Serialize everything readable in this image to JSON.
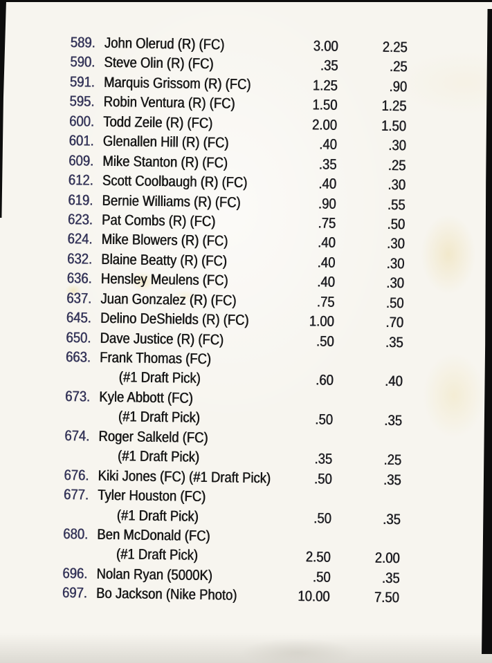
{
  "page": {
    "colors": {
      "paper": "#f7f5ef",
      "edge_black": "#0d0d0d",
      "card_number_ink": "#34345a",
      "text_ink": "#161616",
      "price_ink": "#1d1d22",
      "stain_yellow": "#e9d492"
    }
  },
  "price_list": {
    "rows": [
      {
        "num": "589.",
        "text": "John Olerud (R) (FC)",
        "high": "3.00",
        "low": "2.25",
        "indent": false
      },
      {
        "num": "590.",
        "text": "Steve Olin (R) (FC)",
        "high": ".35",
        "low": ".25",
        "indent": false
      },
      {
        "num": "591.",
        "text": "Marquis Grissom (R) (FC)",
        "high": "1.25",
        "low": ".90",
        "indent": false
      },
      {
        "num": "595.",
        "text": "Robin Ventura (R) (FC)",
        "high": "1.50",
        "low": "1.25",
        "indent": false
      },
      {
        "num": "600.",
        "text": "Todd Zeile (R) (FC)",
        "high": "2.00",
        "low": "1.50",
        "indent": false
      },
      {
        "num": "601.",
        "text": "Glenallen Hill (R) (FC)",
        "high": ".40",
        "low": ".30",
        "indent": false
      },
      {
        "num": "609.",
        "text": "Mike Stanton (R) (FC)",
        "high": ".35",
        "low": ".25",
        "indent": false
      },
      {
        "num": "612.",
        "text": "Scott Coolbaugh (R) (FC)",
        "high": ".40",
        "low": ".30",
        "indent": false
      },
      {
        "num": "619.",
        "text": "Bernie Williams (R) (FC)",
        "high": ".90",
        "low": ".55",
        "indent": false
      },
      {
        "num": "623.",
        "text": "Pat Combs (R) (FC)",
        "high": ".75",
        "low": ".50",
        "indent": false
      },
      {
        "num": "624.",
        "text": "Mike Blowers (R) (FC)",
        "high": ".40",
        "low": ".30",
        "indent": false
      },
      {
        "num": "632.",
        "text": "Blaine Beatty (R) (FC)",
        "high": ".40",
        "low": ".30",
        "indent": false
      },
      {
        "num": "636.",
        "text": "Hensley Meulens (FC)",
        "high": ".40",
        "low": ".30",
        "indent": false
      },
      {
        "num": "637.",
        "text": "Juan Gonzalez (R) (FC)",
        "high": ".75",
        "low": ".50",
        "indent": false
      },
      {
        "num": "645.",
        "text": "Delino DeShields (R) (FC)",
        "high": "1.00",
        "low": ".70",
        "indent": false
      },
      {
        "num": "650.",
        "text": "Dave Justice (R) (FC)",
        "high": ".50",
        "low": ".35",
        "indent": false
      },
      {
        "num": "663.",
        "text": "Frank Thomas (FC)",
        "high": "",
        "low": "",
        "indent": false
      },
      {
        "num": "",
        "text": "(#1 Draft Pick)",
        "high": ".60",
        "low": ".40",
        "indent": true
      },
      {
        "num": "673.",
        "text": "Kyle Abbott (FC)",
        "high": "",
        "low": "",
        "indent": false
      },
      {
        "num": "",
        "text": "(#1 Draft Pick)",
        "high": ".50",
        "low": ".35",
        "indent": true
      },
      {
        "num": "674.",
        "text": "Roger Salkeld (FC)",
        "high": "",
        "low": "",
        "indent": false
      },
      {
        "num": "",
        "text": "(#1 Draft Pick)",
        "high": ".35",
        "low": ".25",
        "indent": true
      },
      {
        "num": "676.",
        "text": "Kiki Jones (FC) (#1 Draft Pick)",
        "high": ".50",
        "low": ".35",
        "indent": false
      },
      {
        "num": "677.",
        "text": "Tyler Houston (FC)",
        "high": "",
        "low": "",
        "indent": false
      },
      {
        "num": "",
        "text": "(#1 Draft Pick)",
        "high": ".50",
        "low": ".35",
        "indent": true
      },
      {
        "num": "680.",
        "text": "Ben McDonald (FC)",
        "high": "",
        "low": "",
        "indent": false
      },
      {
        "num": "",
        "text": "(#1 Draft Pick)",
        "high": "2.50",
        "low": "2.00",
        "indent": true
      },
      {
        "num": "696.",
        "text": "Nolan Ryan (5000K)",
        "high": ".50",
        "low": ".35",
        "indent": false
      },
      {
        "num": "697.",
        "text": "Bo Jackson (Nike Photo)",
        "high": "10.00",
        "low": "7.50",
        "indent": false
      }
    ]
  }
}
